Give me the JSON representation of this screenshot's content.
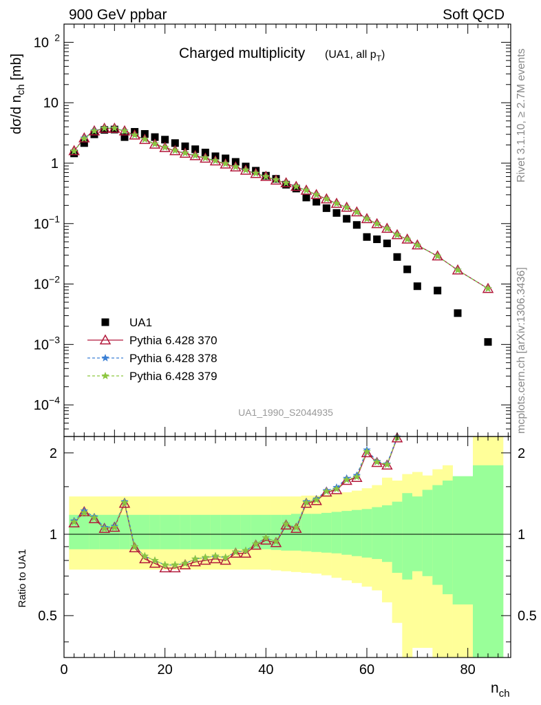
{
  "header": {
    "left": "900 GeV ppbar",
    "right": "Soft QCD"
  },
  "side_labels": {
    "rivet": "Rivet 3.1.10, ≥ 2.7M events",
    "mcplots": "mcplots.cern.ch [arXiv:1306.3436]"
  },
  "chart_data": [
    {
      "type": "scatter",
      "title": "Charged multiplicity",
      "title_suffix": "(UA1, all p",
      "title_suffix_sub": "T",
      "title_suffix_end": ")",
      "ylabel": "dσ/d n",
      "ylabel_sub": "ch",
      "ylabel_unit": " [mb]",
      "y_scale": "log",
      "ylim": [
        3e-05,
        200
      ],
      "xlim": [
        0,
        88.5
      ],
      "analysis_id": "UA1_1990_S2044935",
      "legend_position": "bottom-left",
      "y_ticks": [
        {
          "value": 0.0001,
          "base": "10",
          "exp": "−4"
        },
        {
          "value": 0.001,
          "base": "10",
          "exp": "−3"
        },
        {
          "value": 0.01,
          "base": "10",
          "exp": "−2"
        },
        {
          "value": 0.1,
          "base": "10",
          "exp": "−1"
        },
        {
          "value": 1,
          "base": "1",
          "exp": ""
        },
        {
          "value": 10,
          "base": "10",
          "exp": ""
        },
        {
          "value": 100,
          "base": "10",
          "exp": "2"
        }
      ],
      "series": [
        {
          "name": "UA1",
          "marker": "square",
          "color": "#000000",
          "x": [
            2,
            4,
            6,
            8,
            10,
            12,
            14,
            16,
            18,
            20,
            22,
            24,
            26,
            28,
            30,
            32,
            34,
            36,
            38,
            40,
            42,
            44,
            46,
            48,
            50,
            52,
            54,
            56,
            58,
            60,
            62,
            64,
            66,
            68,
            70,
            74,
            78,
            84
          ],
          "y": [
            1.45,
            2.15,
            3.0,
            3.55,
            3.6,
            2.7,
            3.3,
            3.05,
            2.7,
            2.45,
            2.15,
            1.9,
            1.7,
            1.5,
            1.3,
            1.2,
            1.05,
            0.88,
            0.75,
            0.62,
            0.55,
            0.44,
            0.38,
            0.27,
            0.23,
            0.18,
            0.15,
            0.12,
            0.095,
            0.06,
            0.055,
            0.047,
            0.028,
            0.0175,
            0.0092,
            0.0078,
            0.0033,
            0.0011
          ]
        },
        {
          "name": "Pythia 6.428 370",
          "marker": "open-triangle",
          "line": "solid",
          "color": "#b2183a",
          "x": [
            2,
            4,
            6,
            8,
            10,
            12,
            14,
            16,
            18,
            20,
            22,
            24,
            26,
            28,
            30,
            32,
            34,
            36,
            38,
            40,
            42,
            44,
            46,
            48,
            50,
            52,
            54,
            56,
            58,
            60,
            62,
            64,
            66,
            68,
            70,
            74,
            78,
            84
          ],
          "y": [
            1.6,
            2.6,
            3.4,
            3.75,
            3.75,
            3.4,
            2.9,
            2.45,
            2.05,
            1.8,
            1.6,
            1.45,
            1.32,
            1.2,
            1.08,
            0.96,
            0.86,
            0.76,
            0.67,
            0.6,
            0.52,
            0.47,
            0.41,
            0.355,
            0.3,
            0.255,
            0.215,
            0.185,
            0.155,
            0.12,
            0.099,
            0.083,
            0.065,
            0.055,
            0.044,
            0.029,
            0.017,
            0.0084
          ]
        },
        {
          "name": "Pythia 6.428 378",
          "marker": "star",
          "line": "dashed",
          "color": "#3a7fd5",
          "x": [
            2,
            4,
            6,
            8,
            10,
            12,
            14,
            16,
            18,
            20,
            22,
            24,
            26,
            28,
            30,
            32,
            34,
            36,
            38,
            40,
            42,
            44,
            46,
            48,
            50,
            52,
            54,
            56,
            58,
            60,
            62,
            64,
            66,
            68,
            70,
            74,
            78,
            84
          ],
          "y": [
            1.58,
            2.6,
            3.45,
            3.8,
            3.8,
            3.42,
            2.92,
            2.48,
            2.08,
            1.83,
            1.62,
            1.47,
            1.34,
            1.22,
            1.1,
            0.98,
            0.87,
            0.77,
            0.68,
            0.6,
            0.53,
            0.47,
            0.41,
            0.355,
            0.3,
            0.255,
            0.215,
            0.185,
            0.155,
            0.12,
            0.099,
            0.083,
            0.065,
            0.055,
            0.044,
            0.029,
            0.017,
            0.0084
          ]
        },
        {
          "name": "Pythia 6.428 379",
          "marker": "star",
          "line": "dashed",
          "color": "#8cc63f",
          "x": [
            2,
            4,
            6,
            8,
            10,
            12,
            14,
            16,
            18,
            20,
            22,
            24,
            26,
            28,
            30,
            32,
            34,
            36,
            38,
            40,
            42,
            44,
            46,
            48,
            50,
            52,
            54,
            56,
            58,
            60,
            62,
            64,
            66,
            68,
            70,
            74,
            78,
            84
          ],
          "y": [
            1.58,
            2.55,
            3.4,
            3.78,
            3.78,
            3.4,
            2.92,
            2.48,
            2.08,
            1.83,
            1.62,
            1.47,
            1.34,
            1.22,
            1.1,
            0.98,
            0.87,
            0.77,
            0.68,
            0.6,
            0.53,
            0.47,
            0.41,
            0.355,
            0.3,
            0.255,
            0.215,
            0.185,
            0.155,
            0.12,
            0.099,
            0.083,
            0.065,
            0.055,
            0.044,
            0.029,
            0.017,
            0.0084
          ]
        }
      ]
    },
    {
      "type": "line",
      "ylabel": "Ratio to UA1",
      "xlabel": "n",
      "xlabel_sub": "ch",
      "y_scale": "log",
      "ylim": [
        0.35,
        2.3
      ],
      "xlim": [
        0,
        88.5
      ],
      "x_ticks": [
        0,
        20,
        40,
        60,
        80
      ],
      "y_ticks": [
        0.5,
        1,
        2
      ],
      "y_tick_labels": [
        "0.5",
        "1",
        "2"
      ],
      "reference_line": 1,
      "uncertainty_bands": {
        "x_edges": [
          1,
          3,
          5,
          7,
          9,
          11,
          13,
          15,
          17,
          19,
          21,
          23,
          25,
          27,
          29,
          31,
          33,
          35,
          37,
          39,
          41,
          43,
          45,
          47,
          49,
          51,
          53,
          55,
          57,
          59,
          61,
          63,
          65,
          67,
          69,
          71,
          73,
          75,
          77,
          81,
          87
        ],
        "outer": [
          [
            0.74,
            1.38
          ],
          [
            0.74,
            1.38
          ],
          [
            0.74,
            1.38
          ],
          [
            0.74,
            1.38
          ],
          [
            0.74,
            1.38
          ],
          [
            0.74,
            1.38
          ],
          [
            0.74,
            1.38
          ],
          [
            0.74,
            1.38
          ],
          [
            0.74,
            1.38
          ],
          [
            0.74,
            1.38
          ],
          [
            0.74,
            1.38
          ],
          [
            0.74,
            1.38
          ],
          [
            0.74,
            1.38
          ],
          [
            0.74,
            1.38
          ],
          [
            0.74,
            1.38
          ],
          [
            0.74,
            1.38
          ],
          [
            0.74,
            1.38
          ],
          [
            0.74,
            1.38
          ],
          [
            0.74,
            1.38
          ],
          [
            0.74,
            1.38
          ],
          [
            0.735,
            1.38
          ],
          [
            0.73,
            1.38
          ],
          [
            0.725,
            1.38
          ],
          [
            0.72,
            1.39
          ],
          [
            0.715,
            1.39
          ],
          [
            0.705,
            1.4
          ],
          [
            0.69,
            1.41
          ],
          [
            0.675,
            1.43
          ],
          [
            0.66,
            1.45
          ],
          [
            0.64,
            1.48
          ],
          [
            0.62,
            1.52
          ],
          [
            0.56,
            1.62
          ],
          [
            0.47,
            1.58
          ],
          [
            0.33,
            1.67
          ],
          [
            0.38,
            1.7
          ],
          [
            0.38,
            1.65
          ],
          [
            0.33,
            1.74
          ],
          [
            0.3,
            1.8
          ],
          [
            0.2,
            1.62
          ],
          [
            0.2,
            3.0
          ]
        ],
        "inner": [
          [
            0.88,
            1.18
          ],
          [
            0.88,
            1.18
          ],
          [
            0.88,
            1.18
          ],
          [
            0.88,
            1.18
          ],
          [
            0.88,
            1.18
          ],
          [
            0.88,
            1.18
          ],
          [
            0.88,
            1.18
          ],
          [
            0.88,
            1.18
          ],
          [
            0.88,
            1.18
          ],
          [
            0.88,
            1.18
          ],
          [
            0.88,
            1.18
          ],
          [
            0.88,
            1.18
          ],
          [
            0.88,
            1.18
          ],
          [
            0.88,
            1.18
          ],
          [
            0.88,
            1.18
          ],
          [
            0.88,
            1.18
          ],
          [
            0.88,
            1.18
          ],
          [
            0.88,
            1.18
          ],
          [
            0.88,
            1.18
          ],
          [
            0.88,
            1.18
          ],
          [
            0.875,
            1.18
          ],
          [
            0.87,
            1.18
          ],
          [
            0.87,
            1.19
          ],
          [
            0.865,
            1.19
          ],
          [
            0.86,
            1.19
          ],
          [
            0.855,
            1.2
          ],
          [
            0.85,
            1.21
          ],
          [
            0.84,
            1.22
          ],
          [
            0.83,
            1.23
          ],
          [
            0.82,
            1.24
          ],
          [
            0.81,
            1.26
          ],
          [
            0.79,
            1.28
          ],
          [
            0.72,
            1.32
          ],
          [
            0.68,
            1.42
          ],
          [
            0.73,
            1.38
          ],
          [
            0.7,
            1.46
          ],
          [
            0.65,
            1.52
          ],
          [
            0.6,
            1.58
          ],
          [
            0.55,
            1.64
          ],
          [
            0.33,
            1.8
          ]
        ]
      },
      "series": [
        {
          "name": "Pythia 6.428 370",
          "color": "#b2183a",
          "x": [
            2,
            4,
            6,
            8,
            10,
            12,
            14,
            16,
            18,
            20,
            22,
            24,
            26,
            28,
            30,
            32,
            34,
            36,
            38,
            40,
            42,
            44,
            46,
            48,
            50,
            52,
            54,
            56,
            58,
            60,
            62,
            64,
            66
          ],
          "y": [
            1.1,
            1.21,
            1.14,
            1.05,
            1.06,
            1.3,
            0.89,
            0.81,
            0.78,
            0.75,
            0.75,
            0.77,
            0.79,
            0.8,
            0.81,
            0.8,
            0.85,
            0.85,
            0.91,
            0.95,
            0.93,
            1.08,
            1.05,
            1.3,
            1.33,
            1.43,
            1.46,
            1.58,
            1.62,
            2.0,
            1.84,
            1.8,
            2.27
          ]
        },
        {
          "name": "Pythia 6.428 378",
          "color": "#3a7fd5",
          "x": [
            2,
            4,
            6,
            8,
            10,
            12,
            14,
            16,
            18,
            20,
            22,
            24,
            26,
            28,
            30,
            32,
            34,
            36,
            38,
            40,
            42,
            44,
            46,
            48,
            50,
            52,
            54,
            56,
            58,
            60,
            62,
            64,
            66
          ],
          "y": [
            1.12,
            1.22,
            1.16,
            1.06,
            1.07,
            1.32,
            0.9,
            0.83,
            0.8,
            0.77,
            0.77,
            0.78,
            0.81,
            0.82,
            0.83,
            0.82,
            0.86,
            0.87,
            0.92,
            0.97,
            0.94,
            1.09,
            1.06,
            1.32,
            1.35,
            1.45,
            1.49,
            1.61,
            1.65,
            2.05,
            1.86,
            1.82,
            2.29
          ]
        },
        {
          "name": "Pythia 6.428 379",
          "color": "#8cc63f",
          "x": [
            2,
            4,
            6,
            8,
            10,
            12,
            14,
            16,
            18,
            20,
            22,
            24,
            26,
            28,
            30,
            32,
            34,
            36,
            38,
            40,
            42,
            44,
            46,
            48,
            50,
            52,
            54,
            56,
            58,
            60,
            62,
            64,
            66
          ],
          "y": [
            1.11,
            1.2,
            1.15,
            1.05,
            1.06,
            1.31,
            0.9,
            0.83,
            0.8,
            0.77,
            0.77,
            0.78,
            0.81,
            0.82,
            0.83,
            0.82,
            0.86,
            0.87,
            0.92,
            0.97,
            0.94,
            1.09,
            1.06,
            1.31,
            1.34,
            1.44,
            1.47,
            1.59,
            1.63,
            2.02,
            1.85,
            1.81,
            2.28
          ]
        }
      ]
    }
  ]
}
